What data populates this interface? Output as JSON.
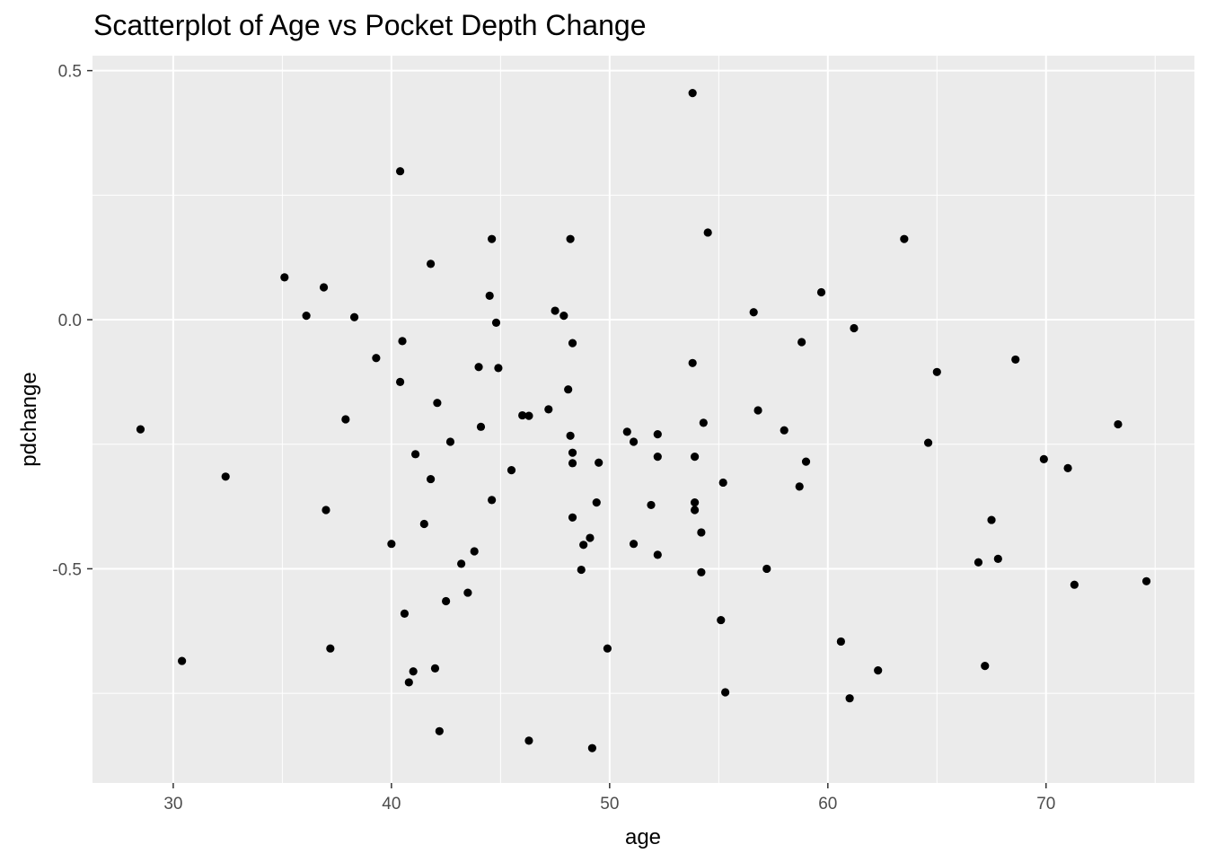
{
  "chart_data": {
    "type": "scatter",
    "title": "Scatterplot of Age vs Pocket Depth Change",
    "xlabel": "age",
    "ylabel": "pdchange",
    "xlim": [
      26.3,
      76.8
    ],
    "ylim": [
      -0.93,
      0.53
    ],
    "x_ticks": [
      30,
      40,
      50,
      60,
      70
    ],
    "x_tick_labels": [
      "30",
      "40",
      "50",
      "60",
      "70"
    ],
    "y_ticks": [
      -0.5,
      0.0,
      0.5
    ],
    "y_tick_labels": [
      "-0.5",
      "0.0",
      "0.5"
    ],
    "grid": true,
    "background": "#ebebeb",
    "point_color": "#000000",
    "points": [
      {
        "x": 28.5,
        "y": -0.22
      },
      {
        "x": 30.4,
        "y": -0.685
      },
      {
        "x": 32.4,
        "y": -0.315
      },
      {
        "x": 35.1,
        "y": 0.085
      },
      {
        "x": 36.1,
        "y": 0.008
      },
      {
        "x": 36.9,
        "y": 0.065
      },
      {
        "x": 37.0,
        "y": -0.382
      },
      {
        "x": 37.2,
        "y": -0.66
      },
      {
        "x": 37.9,
        "y": -0.2
      },
      {
        "x": 38.3,
        "y": 0.005
      },
      {
        "x": 39.3,
        "y": -0.077
      },
      {
        "x": 40.0,
        "y": -0.45
      },
      {
        "x": 40.4,
        "y": 0.298
      },
      {
        "x": 40.4,
        "y": -0.125
      },
      {
        "x": 40.5,
        "y": -0.043
      },
      {
        "x": 40.6,
        "y": -0.59
      },
      {
        "x": 40.8,
        "y": -0.728
      },
      {
        "x": 41.0,
        "y": -0.706
      },
      {
        "x": 41.1,
        "y": -0.27
      },
      {
        "x": 41.5,
        "y": -0.41
      },
      {
        "x": 41.8,
        "y": 0.112
      },
      {
        "x": 41.8,
        "y": -0.32
      },
      {
        "x": 42.0,
        "y": -0.7
      },
      {
        "x": 42.1,
        "y": -0.167
      },
      {
        "x": 42.2,
        "y": -0.826
      },
      {
        "x": 42.5,
        "y": -0.565
      },
      {
        "x": 42.7,
        "y": -0.245
      },
      {
        "x": 43.2,
        "y": -0.49
      },
      {
        "x": 43.5,
        "y": -0.548
      },
      {
        "x": 43.8,
        "y": -0.465
      },
      {
        "x": 44.0,
        "y": -0.095
      },
      {
        "x": 44.1,
        "y": -0.215
      },
      {
        "x": 44.5,
        "y": 0.048
      },
      {
        "x": 44.6,
        "y": 0.162
      },
      {
        "x": 44.6,
        "y": -0.362
      },
      {
        "x": 44.8,
        "y": -0.006
      },
      {
        "x": 44.9,
        "y": -0.097
      },
      {
        "x": 45.5,
        "y": -0.302
      },
      {
        "x": 46.0,
        "y": -0.192
      },
      {
        "x": 46.3,
        "y": -0.193
      },
      {
        "x": 46.3,
        "y": -0.845
      },
      {
        "x": 47.2,
        "y": -0.18
      },
      {
        "x": 47.5,
        "y": 0.018
      },
      {
        "x": 47.9,
        "y": 0.008
      },
      {
        "x": 48.1,
        "y": -0.14
      },
      {
        "x": 48.2,
        "y": 0.162
      },
      {
        "x": 48.2,
        "y": -0.233
      },
      {
        "x": 48.3,
        "y": -0.047
      },
      {
        "x": 48.3,
        "y": -0.267
      },
      {
        "x": 48.3,
        "y": -0.288
      },
      {
        "x": 48.3,
        "y": -0.397
      },
      {
        "x": 48.7,
        "y": -0.502
      },
      {
        "x": 48.8,
        "y": -0.452
      },
      {
        "x": 49.1,
        "y": -0.438
      },
      {
        "x": 49.2,
        "y": -0.86
      },
      {
        "x": 49.4,
        "y": -0.367
      },
      {
        "x": 49.5,
        "y": -0.287
      },
      {
        "x": 49.9,
        "y": -0.66
      },
      {
        "x": 50.8,
        "y": -0.225
      },
      {
        "x": 51.1,
        "y": -0.245
      },
      {
        "x": 51.1,
        "y": -0.45
      },
      {
        "x": 51.9,
        "y": -0.372
      },
      {
        "x": 52.2,
        "y": -0.23
      },
      {
        "x": 52.2,
        "y": -0.275
      },
      {
        "x": 52.2,
        "y": -0.472
      },
      {
        "x": 53.8,
        "y": 0.455
      },
      {
        "x": 53.8,
        "y": -0.087
      },
      {
        "x": 53.9,
        "y": -0.275
      },
      {
        "x": 53.9,
        "y": -0.367
      },
      {
        "x": 53.9,
        "y": -0.382
      },
      {
        "x": 54.2,
        "y": -0.427
      },
      {
        "x": 54.2,
        "y": -0.507
      },
      {
        "x": 54.3,
        "y": -0.207
      },
      {
        "x": 54.5,
        "y": 0.175
      },
      {
        "x": 55.1,
        "y": -0.603
      },
      {
        "x": 55.2,
        "y": -0.327
      },
      {
        "x": 55.3,
        "y": -0.748
      },
      {
        "x": 56.6,
        "y": 0.015
      },
      {
        "x": 56.8,
        "y": -0.182
      },
      {
        "x": 57.2,
        "y": -0.5
      },
      {
        "x": 58.0,
        "y": -0.222
      },
      {
        "x": 58.7,
        "y": -0.335
      },
      {
        "x": 58.8,
        "y": -0.045
      },
      {
        "x": 59.0,
        "y": -0.285
      },
      {
        "x": 59.7,
        "y": 0.055
      },
      {
        "x": 60.6,
        "y": -0.646
      },
      {
        "x": 61.0,
        "y": -0.76
      },
      {
        "x": 61.2,
        "y": -0.017
      },
      {
        "x": 62.3,
        "y": -0.704
      },
      {
        "x": 63.5,
        "y": 0.162
      },
      {
        "x": 64.6,
        "y": -0.247
      },
      {
        "x": 65.0,
        "y": -0.105
      },
      {
        "x": 66.9,
        "y": -0.487
      },
      {
        "x": 67.2,
        "y": -0.695
      },
      {
        "x": 67.5,
        "y": -0.402
      },
      {
        "x": 67.8,
        "y": -0.48
      },
      {
        "x": 68.6,
        "y": -0.08
      },
      {
        "x": 69.9,
        "y": -0.28
      },
      {
        "x": 71.0,
        "y": -0.298
      },
      {
        "x": 71.3,
        "y": -0.532
      },
      {
        "x": 73.3,
        "y": -0.21
      },
      {
        "x": 74.6,
        "y": -0.525
      }
    ]
  }
}
